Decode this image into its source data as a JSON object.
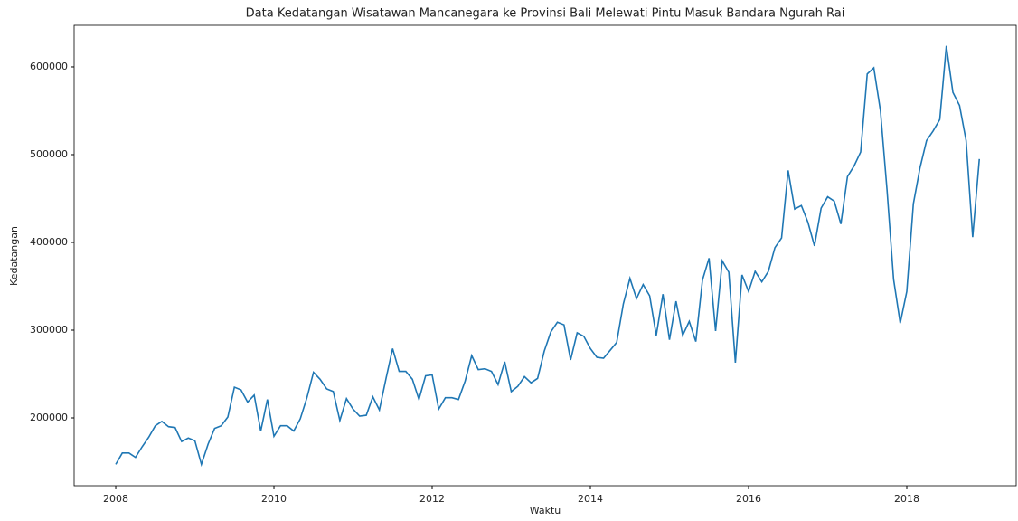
{
  "chart_data": {
    "type": "line",
    "title": "Data Kedatangan Wisatawan Mancanegara ke Provinsi Bali Melewati Pintu Masuk Bandara Ngurah Rai",
    "x_label": "Waktu",
    "y_label": "Kedatangan",
    "x": [
      2008,
      2008.083,
      2008.167,
      2008.25,
      2008.333,
      2008.417,
      2008.5,
      2008.583,
      2008.667,
      2008.75,
      2008.833,
      2008.917,
      2009,
      2009.083,
      2009.167,
      2009.25,
      2009.333,
      2009.417,
      2009.5,
      2009.583,
      2009.667,
      2009.75,
      2009.833,
      2009.917,
      2010,
      2010.083,
      2010.167,
      2010.25,
      2010.333,
      2010.417,
      2010.5,
      2010.583,
      2010.667,
      2010.75,
      2010.833,
      2010.917,
      2011,
      2011.083,
      2011.167,
      2011.25,
      2011.333,
      2011.417,
      2011.5,
      2011.583,
      2011.667,
      2011.75,
      2011.833,
      2011.917,
      2012,
      2012.083,
      2012.167,
      2012.25,
      2012.333,
      2012.417,
      2012.5,
      2012.583,
      2012.667,
      2012.75,
      2012.833,
      2012.917,
      2013,
      2013.083,
      2013.167,
      2013.25,
      2013.333,
      2013.417,
      2013.5,
      2013.583,
      2013.667,
      2013.75,
      2013.833,
      2013.917,
      2014,
      2014.083,
      2014.167,
      2014.25,
      2014.333,
      2014.417,
      2014.5,
      2014.583,
      2014.667,
      2014.75,
      2014.833,
      2014.917,
      2015,
      2015.083,
      2015.167,
      2015.25,
      2015.333,
      2015.417,
      2015.5,
      2015.583,
      2015.667,
      2015.75,
      2015.833,
      2015.917,
      2016,
      2016.083,
      2016.167,
      2016.25,
      2016.333,
      2016.417,
      2016.5,
      2016.583,
      2016.667,
      2016.75,
      2016.833,
      2016.917,
      2017,
      2017.083,
      2017.167,
      2017.25,
      2017.333,
      2017.417,
      2017.5,
      2017.583,
      2017.667,
      2017.75,
      2017.833,
      2017.917,
      2018,
      2018.083,
      2018.167,
      2018.25,
      2018.333,
      2018.417,
      2018.5,
      2018.583,
      2018.667,
      2018.75,
      2018.833,
      2018.917
    ],
    "series": [
      {
        "color": "#1f77b4",
        "values": [
          147000,
          160000,
          160000,
          155000,
          167000,
          178000,
          191000,
          196000,
          190000,
          189000,
          173000,
          177000,
          174000,
          147000,
          170000,
          188000,
          191000,
          201000,
          235000,
          232000,
          218000,
          226000,
          185000,
          221000,
          179000,
          191000,
          191000,
          185000,
          199000,
          223000,
          252000,
          244000,
          233000,
          230000,
          197000,
          222000,
          210000,
          202000,
          203000,
          224000,
          209000,
          245000,
          279000,
          253000,
          253000,
          244000,
          221000,
          248000,
          249000,
          210000,
          223000,
          223000,
          221000,
          242000,
          271000,
          255000,
          256000,
          253000,
          238000,
          264000,
          230000,
          236000,
          247000,
          240000,
          245000,
          276000,
          298000,
          309000,
          306000,
          266000,
          297000,
          293000,
          279000,
          269000,
          268000,
          277000,
          286000,
          330000,
          359000,
          336000,
          352000,
          339000,
          294000,
          341000,
          289000,
          333000,
          294000,
          310000,
          287000,
          357000,
          382000,
          299000,
          379000,
          366000,
          263000,
          363000,
          344000,
          367000,
          355000,
          367000,
          394000,
          405000,
          482000,
          438000,
          442000,
          423000,
          396000,
          439000,
          452000,
          447000,
          421000,
          475000,
          487000,
          503000,
          592000,
          599000,
          550000,
          460000,
          358000,
          308000,
          344000,
          444000,
          485000,
          516000,
          527000,
          540000,
          624000,
          571000,
          556000,
          516000,
          406000,
          495000
        ]
      }
    ],
    "xlim": [
      2007.474,
      2019.383
    ],
    "xticks": [
      2008,
      2010,
      2012,
      2014,
      2016,
      2018
    ],
    "ylim": [
      122680,
      647400
    ],
    "yticks": [
      200000,
      300000,
      400000,
      500000,
      600000
    ],
    "grid": false
  }
}
